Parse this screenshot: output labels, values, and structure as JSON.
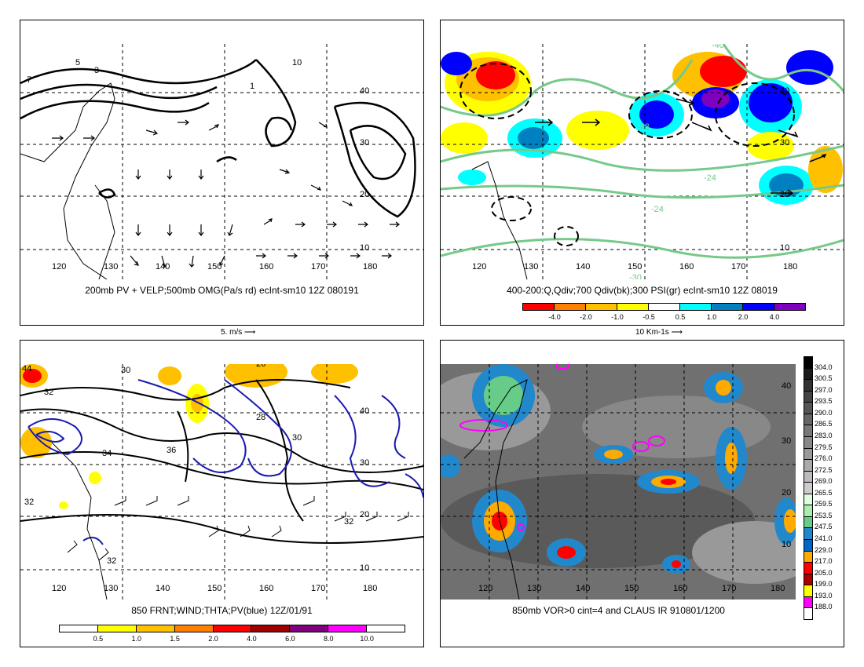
{
  "panels": {
    "tl": {
      "caption": "200mb PV + VELP;500mb OMG(Pa/s rd) ecInt-sm10 12Z 080191",
      "vector_ref": "5. m/s",
      "lon_labels": [
        "120",
        "130",
        "140",
        "150",
        "160",
        "170",
        "180"
      ],
      "lat_labels": [
        "40",
        "30",
        "20",
        "10"
      ],
      "contour_labels": [
        "5",
        "3",
        "1",
        "10",
        "5",
        "3",
        "1",
        "5",
        "3",
        "2",
        "3",
        "1",
        "3",
        "2",
        "1",
        "7"
      ]
    },
    "tr": {
      "caption": "400-200:Q,Qdiv;700 Qdiv(bk);300 PSI(gr) ecInt-sm10 12Z 08019",
      "vector_ref": "10 Km-1s",
      "lon_labels": [
        "120",
        "130",
        "140",
        "150",
        "160",
        "170",
        "180"
      ],
      "lat_labels": [
        "40",
        "30",
        "20",
        "10"
      ],
      "contour_labels": [
        "-48",
        "-24",
        "-24",
        "-30",
        "-40",
        "-24"
      ],
      "colorbar": {
        "labels": [
          "-4.0",
          "-2.0",
          "-1.0",
          "-0.5",
          "0.5",
          "1.0",
          "2.0",
          "4.0"
        ],
        "colors": [
          "#ff0000",
          "#ff8000",
          "#ffc000",
          "#ffff00",
          "#ffffff",
          "#00ffff",
          "#0080c0",
          "#0000ff",
          "#8000c0"
        ]
      }
    },
    "bl": {
      "caption": "850 FRNT;WIND;THTA;PV(blue) 12Z/01/91",
      "lon_labels": [
        "120",
        "130",
        "140",
        "150",
        "160",
        "170",
        "180"
      ],
      "lat_labels": [
        "40",
        "30",
        "20",
        "10"
      ],
      "contour_labels": [
        "44",
        "32",
        "30",
        "26",
        "34",
        "28",
        "30",
        "28",
        "36",
        "26",
        "30",
        "34",
        "32",
        "32",
        "32",
        "32",
        "30",
        "20",
        "32"
      ],
      "colorbar": {
        "labels": [
          "0.5",
          "1.0",
          "1.5",
          "2.0",
          "4.0",
          "6.0",
          "8.0",
          "10.0"
        ],
        "colors": [
          "#ffffff",
          "#ffff00",
          "#ffc000",
          "#ff8000",
          "#ff0000",
          "#a00000",
          "#800080",
          "#ff00ff",
          "#ffffff"
        ]
      }
    },
    "br": {
      "caption": "850mb VOR>0 cint=4 and CLAUS IR 910801/1200",
      "lon_labels": [
        "120",
        "130",
        "140",
        "150",
        "160",
        "170",
        "180"
      ],
      "lat_labels": [
        "40",
        "30",
        "20",
        "10"
      ],
      "colorbar": {
        "labels": [
          "304.0",
          "300.5",
          "297.0",
          "293.5",
          "290.0",
          "286.5",
          "283.0",
          "279.5",
          "276.0",
          "272.5",
          "269.0",
          "265.5",
          "259.5",
          "253.5",
          "247.5",
          "241.0",
          "229.0",
          "217.0",
          "205.0",
          "199.0",
          "193.0",
          "188.0"
        ],
        "colors": [
          "#000000",
          "#1a1a1a",
          "#333333",
          "#444444",
          "#555555",
          "#666666",
          "#777777",
          "#888888",
          "#999999",
          "#aaaaaa",
          "#bbbbbb",
          "#cccccc",
          "#ddffdd",
          "#aaeeaa",
          "#66cc88",
          "#2288cc",
          "#0066cc",
          "#ffaa00",
          "#ff0000",
          "#aa0000",
          "#ffff00",
          "#ff00ff",
          "#ffffff"
        ]
      }
    }
  }
}
